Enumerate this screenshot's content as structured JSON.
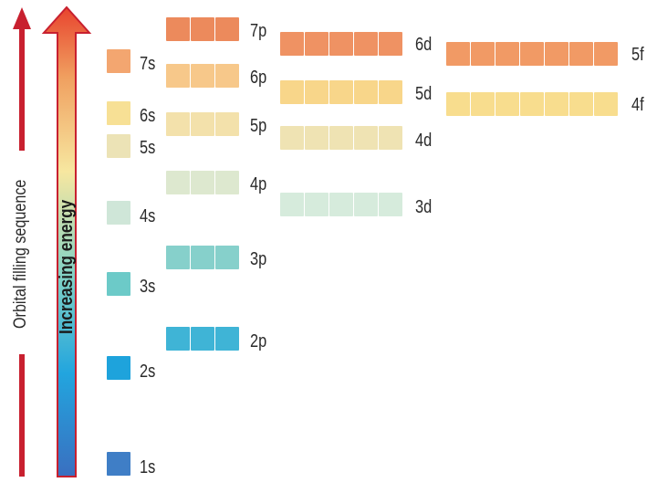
{
  "axis": {
    "filling_sequence_label": "Orbital filling sequence",
    "energy_label": "Increasing energy"
  },
  "orbitals": [
    {
      "id": "1s",
      "label": "1s",
      "count": 1,
      "color": "#3f7ec6"
    },
    {
      "id": "2s",
      "label": "2s",
      "count": 1,
      "color": "#1ea3dc"
    },
    {
      "id": "2p",
      "label": "2p",
      "count": 3,
      "color": "#3fb4d6"
    },
    {
      "id": "3s",
      "label": "3s",
      "count": 1,
      "color": "#6ccac8"
    },
    {
      "id": "3p",
      "label": "3p",
      "count": 3,
      "color": "#86d0cb"
    },
    {
      "id": "4s",
      "label": "4s",
      "count": 1,
      "color": "#cfe6d8"
    },
    {
      "id": "3d",
      "label": "3d",
      "count": 5,
      "color": "#d6ebdc"
    },
    {
      "id": "4p",
      "label": "4p",
      "count": 3,
      "color": "#dde8cf"
    },
    {
      "id": "5s",
      "label": "5s",
      "count": 1,
      "color": "#ece3b6"
    },
    {
      "id": "4d",
      "label": "4d",
      "count": 5,
      "color": "#efe3b3"
    },
    {
      "id": "5p",
      "label": "5p",
      "count": 3,
      "color": "#f3e1ab"
    },
    {
      "id": "6s",
      "label": "6s",
      "count": 1,
      "color": "#f7e095"
    },
    {
      "id": "4f",
      "label": "4f",
      "count": 7,
      "color": "#f8dd8e"
    },
    {
      "id": "5d",
      "label": "5d",
      "count": 5,
      "color": "#f8d68a"
    },
    {
      "id": "6p",
      "label": "6p",
      "count": 3,
      "color": "#f7c88a"
    },
    {
      "id": "7s",
      "label": "7s",
      "count": 1,
      "color": "#f3a670"
    },
    {
      "id": "5f",
      "label": "5f",
      "count": 7,
      "color": "#f19a65"
    },
    {
      "id": "6d",
      "label": "6d",
      "count": 5,
      "color": "#ef9263"
    },
    {
      "id": "7p",
      "label": "7p",
      "count": 3,
      "color": "#ec8a5c"
    }
  ],
  "colors": {
    "filling_arrow": "#c8202f",
    "energy_gradient": [
      "#3a6fc0",
      "#22a5de",
      "#7dd0c6",
      "#f7e7a0",
      "#f0a060",
      "#e8442e"
    ],
    "energy_outline": "#c8202f"
  }
}
